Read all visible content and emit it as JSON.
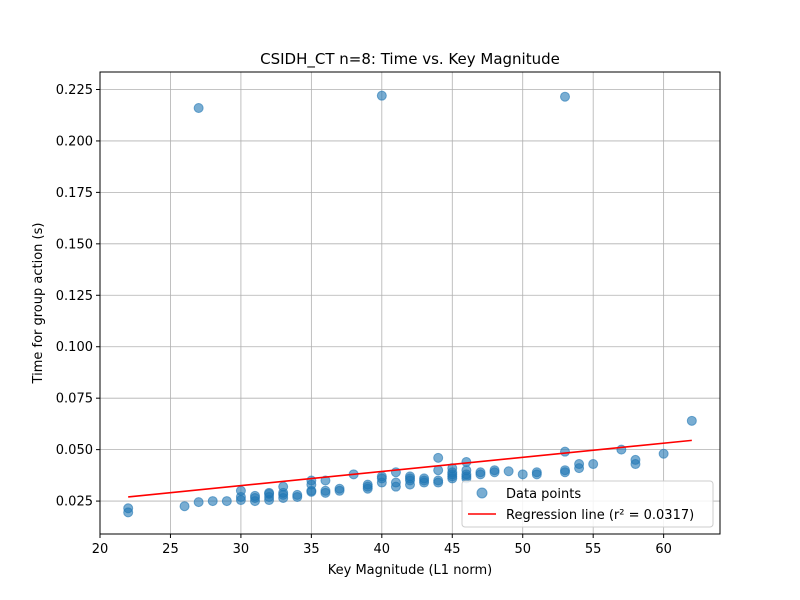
{
  "chart_data": {
    "type": "scatter",
    "title": "CSIDH_CT n=8: Time vs. Key Magnitude",
    "xlabel": "Key Magnitude (L1 norm)",
    "ylabel": "Time for group action (s)",
    "xlim": [
      20,
      64
    ],
    "ylim": [
      0.009,
      0.2335
    ],
    "xticks": [
      20,
      25,
      30,
      35,
      40,
      45,
      50,
      55,
      60
    ],
    "yticks": [
      0.025,
      0.05,
      0.075,
      0.1,
      0.125,
      0.15,
      0.175,
      0.2,
      0.225
    ],
    "xtick_labels": [
      "20",
      "25",
      "30",
      "35",
      "40",
      "45",
      "50",
      "55",
      "60"
    ],
    "ytick_labels": [
      "0.025",
      "0.050",
      "0.075",
      "0.100",
      "0.125",
      "0.150",
      "0.175",
      "0.200",
      "0.225"
    ],
    "grid": true,
    "legend_position": "lower-right",
    "series": [
      {
        "name": "Data points",
        "kind": "scatter",
        "color": "#1f77b4",
        "points": [
          [
            22,
            0.0195
          ],
          [
            22,
            0.0215
          ],
          [
            26,
            0.0225
          ],
          [
            27,
            0.0245
          ],
          [
            27,
            0.216
          ],
          [
            28,
            0.025
          ],
          [
            29,
            0.025
          ],
          [
            30,
            0.0255
          ],
          [
            30,
            0.027
          ],
          [
            30,
            0.03
          ],
          [
            31,
            0.025
          ],
          [
            31,
            0.0265
          ],
          [
            31,
            0.0275
          ],
          [
            32,
            0.0255
          ],
          [
            32,
            0.027
          ],
          [
            32,
            0.0285
          ],
          [
            32,
            0.029
          ],
          [
            33,
            0.0265
          ],
          [
            33,
            0.028
          ],
          [
            33,
            0.029
          ],
          [
            33,
            0.032
          ],
          [
            34,
            0.027
          ],
          [
            34,
            0.028
          ],
          [
            35,
            0.0295
          ],
          [
            35,
            0.03
          ],
          [
            35,
            0.033
          ],
          [
            35,
            0.035
          ],
          [
            36,
            0.029
          ],
          [
            36,
            0.03
          ],
          [
            36,
            0.035
          ],
          [
            37,
            0.03
          ],
          [
            37,
            0.031
          ],
          [
            38,
            0.038
          ],
          [
            39,
            0.031
          ],
          [
            39,
            0.032
          ],
          [
            39,
            0.033
          ],
          [
            40,
            0.034
          ],
          [
            40,
            0.036
          ],
          [
            40,
            0.037
          ],
          [
            40,
            0.222
          ],
          [
            41,
            0.032
          ],
          [
            41,
            0.034
          ],
          [
            41,
            0.039
          ],
          [
            42,
            0.033
          ],
          [
            42,
            0.035
          ],
          [
            42,
            0.036
          ],
          [
            42,
            0.037
          ],
          [
            43,
            0.034
          ],
          [
            43,
            0.035
          ],
          [
            43,
            0.036
          ],
          [
            44,
            0.034
          ],
          [
            44,
            0.035
          ],
          [
            44,
            0.04
          ],
          [
            44,
            0.046
          ],
          [
            45,
            0.036
          ],
          [
            45,
            0.037
          ],
          [
            45,
            0.038
          ],
          [
            45,
            0.039
          ],
          [
            45,
            0.041
          ],
          [
            46,
            0.036
          ],
          [
            46,
            0.037
          ],
          [
            46,
            0.038
          ],
          [
            46,
            0.04
          ],
          [
            46,
            0.044
          ],
          [
            47,
            0.038
          ],
          [
            47,
            0.039
          ],
          [
            48,
            0.039
          ],
          [
            48,
            0.04
          ],
          [
            49,
            0.0395
          ],
          [
            50,
            0.038
          ],
          [
            51,
            0.038
          ],
          [
            51,
            0.039
          ],
          [
            53,
            0.039
          ],
          [
            53,
            0.04
          ],
          [
            53,
            0.049
          ],
          [
            53,
            0.2215
          ],
          [
            54,
            0.041
          ],
          [
            54,
            0.043
          ],
          [
            55,
            0.043
          ],
          [
            57,
            0.05
          ],
          [
            58,
            0.043
          ],
          [
            58,
            0.045
          ],
          [
            60,
            0.048
          ],
          [
            62,
            0.064
          ]
        ]
      },
      {
        "name": "Regression line (r² = 0.0317)",
        "kind": "line",
        "color": "#ff0000",
        "points": [
          [
            22,
            0.027
          ],
          [
            62,
            0.0545
          ]
        ]
      }
    ]
  }
}
